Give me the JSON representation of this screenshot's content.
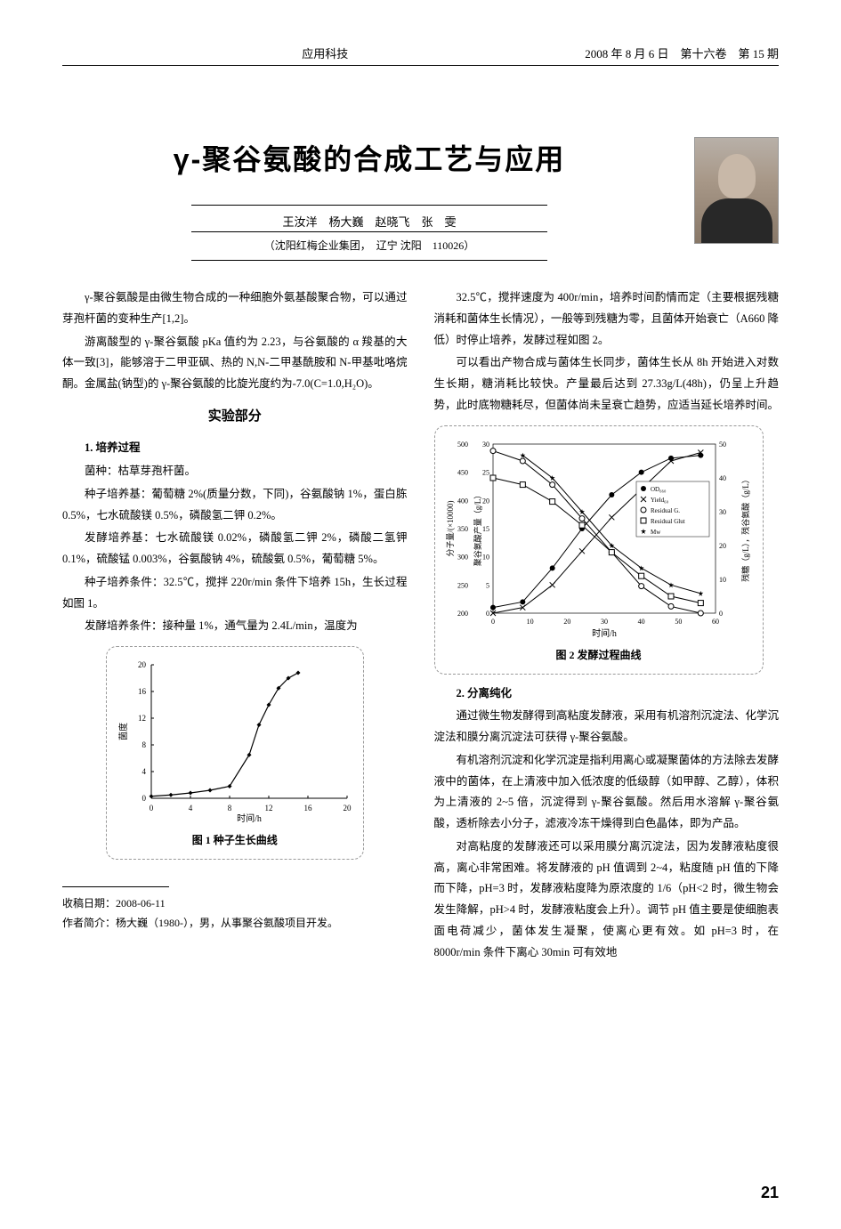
{
  "header": {
    "center": "应用科技",
    "right": "2008 年 8 月 6 日　第十六卷　第 15 期"
  },
  "title": "γ-聚谷氨酸的合成工艺与应用",
  "authors": "王汝洋　杨大巍　赵晓飞　张　雯",
  "affiliation": "（沈阳红梅企业集团，　辽宁 沈阳　110026）",
  "left_col": {
    "p1": "γ-聚谷氨酸是由微生物合成的一种细胞外氨基酸聚合物，可以通过芽孢杆菌的变种生产[1,2]。",
    "p2": "游离酸型的 γ-聚谷氨酸 pKa 值约为 2.23，与谷氨酸的 α 羧基的大体一致[3]，能够溶于二甲亚砜、热的 N,N-二甲基酰胺和 N-甲基吡咯烷酮。金属盐(钠型)的 γ-聚谷氨酸的比旋光度约为-7.0(C=1.0,H₂O)。",
    "sec1": "实验部分",
    "sub1": "1. 培养过程",
    "p3": "菌种：枯草芽孢杆菌。",
    "p4": "种子培养基：葡萄糖 2%(质量分数，下同)，谷氨酸钠 1%，蛋白胨 0.5%，七水硫酸镁 0.5%，磷酸氢二钾 0.2%。",
    "p5": "发酵培养基：七水硫酸镁 0.02%，磷酸氢二钾 2%，磷酸二氢钾 0.1%，硫酸锰 0.003%，谷氨酸钠 4%，硫酸氨 0.5%，葡萄糖 5%。",
    "p6": "种子培养条件：32.5℃，搅拌 220r/min 条件下培养 15h，生长过程如图 1。",
    "p7": "发酵培养条件：接种量 1%，通气量为 2.4L/min，温度为"
  },
  "right_col": {
    "p1": "32.5℃，搅拌速度为 400r/min，培养时间酌情而定（主要根据残糖消耗和菌体生长情况），一般等到残糖为零，且菌体开始衰亡（A660 降低）时停止培养，发酵过程如图 2。",
    "p2": "可以看出产物合成与菌体生长同步，菌体生长从 8h 开始进入对数生长期，糖消耗比较快。产量最后达到 27.33g/L(48h)，仍呈上升趋势，此时底物糖耗尽，但菌体尚未呈衰亡趋势，应适当延长培养时间。",
    "sub2": "2. 分离纯化",
    "p3": "通过微生物发酵得到高粘度发酵液，采用有机溶剂沉淀法、化学沉淀法和膜分离沉淀法可获得 γ-聚谷氨酸。",
    "p4": "有机溶剂沉淀和化学沉淀是指利用离心或凝聚菌体的方法除去发酵液中的菌体，在上清液中加入低浓度的低级醇（如甲醇、乙醇），体积为上清液的 2~5 倍，沉淀得到 γ-聚谷氨酸。然后用水溶解 γ-聚谷氨酸，透析除去小分子，滤液冷冻干燥得到白色晶体，即为产品。",
    "p5": "对高粘度的发酵液还可以采用膜分离沉淀法，因为发酵液粘度很高，离心非常困难。将发酵液的 pH 值调到 2~4，粘度随 pH 值的下降而下降，pH=3 时，发酵液粘度降为原浓度的 1/6（pH<2 时，微生物会发生降解，pH>4 时，发酵液粘度会上升）。调节 pH 值主要是使细胞表面电荷减少，菌体发生凝聚，使离心更有效。如 pH=3 时，在 8000r/min 条件下离心 30min 可有效地"
  },
  "chart1": {
    "type": "line",
    "caption": "图 1 种子生长曲线",
    "xlabel": "时间/h",
    "ylabel": "菌度",
    "xlim": [
      0,
      20
    ],
    "ylim": [
      0,
      20
    ],
    "xticks": [
      0,
      4,
      8,
      12,
      16,
      20
    ],
    "yticks": [
      0,
      4,
      8,
      12,
      16,
      20
    ],
    "line_color": "#000000",
    "marker": "diamond",
    "marker_size": 5,
    "points": [
      {
        "x": 0,
        "y": 0.3
      },
      {
        "x": 2,
        "y": 0.5
      },
      {
        "x": 4,
        "y": 0.8
      },
      {
        "x": 6,
        "y": 1.2
      },
      {
        "x": 8,
        "y": 1.8
      },
      {
        "x": 10,
        "y": 6.5
      },
      {
        "x": 11,
        "y": 11
      },
      {
        "x": 12,
        "y": 14
      },
      {
        "x": 13,
        "y": 16.5
      },
      {
        "x": 14,
        "y": 18
      },
      {
        "x": 15,
        "y": 18.8
      }
    ],
    "background_color": "#ffffff",
    "grid_color": "#cccccc"
  },
  "chart2": {
    "type": "multi-line",
    "caption": "图 2 发酵过程曲线",
    "xlabel": "时间/h",
    "y1label": "分子量/(×10000)",
    "y2label": "聚谷氨酸产量（g/L）",
    "y3label": "残糖（g/L），残谷氨酸（g/L）",
    "xlim": [
      0,
      60
    ],
    "x_ticks": [
      0,
      10,
      20,
      30,
      40,
      50,
      60
    ],
    "y1_lim": [
      200,
      500
    ],
    "y1_ticks": [
      200,
      250,
      300,
      350,
      400,
      450,
      500
    ],
    "y2_lim": [
      0,
      30
    ],
    "y2_ticks": [
      0,
      5,
      10,
      15,
      20,
      25,
      30
    ],
    "y3_lim": [
      0,
      50
    ],
    "y3_ticks": [
      0,
      10,
      20,
      30,
      40,
      50
    ],
    "background_color": "#ffffff",
    "legend": [
      "OD₆₆₀",
      "Yield₆₀",
      "Residual G.",
      "Residual Glut",
      "Mw"
    ],
    "series": {
      "od660": {
        "color": "#000000",
        "marker": "circle-filled",
        "axis": "y2",
        "points": [
          {
            "x": 0,
            "y": 1
          },
          {
            "x": 8,
            "y": 2
          },
          {
            "x": 16,
            "y": 8
          },
          {
            "x": 24,
            "y": 15
          },
          {
            "x": 32,
            "y": 21
          },
          {
            "x": 40,
            "y": 25
          },
          {
            "x": 48,
            "y": 27.5
          },
          {
            "x": 56,
            "y": 28
          }
        ]
      },
      "yield": {
        "color": "#000000",
        "marker": "x",
        "axis": "y2",
        "points": [
          {
            "x": 0,
            "y": 0
          },
          {
            "x": 8,
            "y": 1
          },
          {
            "x": 16,
            "y": 5
          },
          {
            "x": 24,
            "y": 11
          },
          {
            "x": 32,
            "y": 17
          },
          {
            "x": 40,
            "y": 22
          },
          {
            "x": 48,
            "y": 27
          },
          {
            "x": 56,
            "y": 28.5
          }
        ]
      },
      "residual_g": {
        "color": "#000000",
        "marker": "circle-open",
        "axis": "y3",
        "points": [
          {
            "x": 0,
            "y": 48
          },
          {
            "x": 8,
            "y": 45
          },
          {
            "x": 16,
            "y": 38
          },
          {
            "x": 24,
            "y": 28
          },
          {
            "x": 32,
            "y": 18
          },
          {
            "x": 40,
            "y": 8
          },
          {
            "x": 48,
            "y": 2
          },
          {
            "x": 56,
            "y": 0
          }
        ]
      },
      "residual_glut": {
        "color": "#000000",
        "marker": "square-open",
        "axis": "y3",
        "points": [
          {
            "x": 0,
            "y": 40
          },
          {
            "x": 8,
            "y": 38
          },
          {
            "x": 16,
            "y": 33
          },
          {
            "x": 24,
            "y": 26
          },
          {
            "x": 32,
            "y": 18
          },
          {
            "x": 40,
            "y": 11
          },
          {
            "x": 48,
            "y": 5
          },
          {
            "x": 56,
            "y": 3
          }
        ]
      },
      "mw": {
        "color": "#000000",
        "marker": "star",
        "axis": "y1",
        "points": [
          {
            "x": 8,
            "y": 480
          },
          {
            "x": 16,
            "y": 440
          },
          {
            "x": 24,
            "y": 380
          },
          {
            "x": 32,
            "y": 320
          },
          {
            "x": 40,
            "y": 280
          },
          {
            "x": 48,
            "y": 250
          },
          {
            "x": 56,
            "y": 235
          }
        ]
      }
    }
  },
  "footnote": {
    "date_label": "收稿日期：",
    "date": "2008-06-11",
    "bio_label": "作者简介：",
    "bio": "杨大巍（1980-），男，从事聚谷氨酸项目开发。"
  },
  "page_number": "21"
}
